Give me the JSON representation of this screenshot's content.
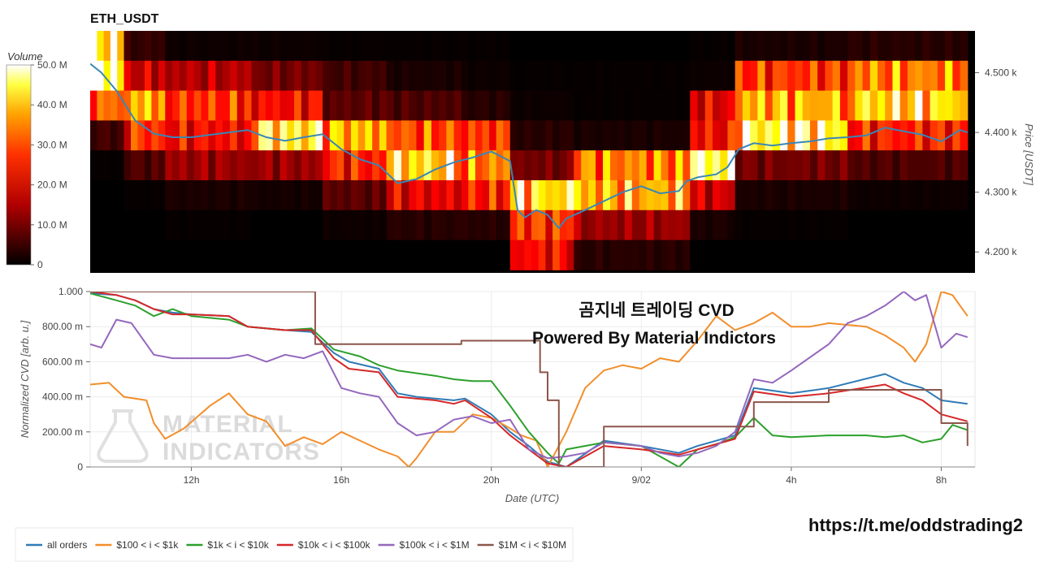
{
  "pair_title": "ETH_USDT",
  "colorbar": {
    "title": "Volume",
    "ticks": [
      {
        "label": "50.0 M",
        "value": 50
      },
      {
        "label": "40.0 M",
        "value": 40
      },
      {
        "label": "30.0 M",
        "value": 30
      },
      {
        "label": "20.0 M",
        "value": 20
      },
      {
        "label": "10.0 M",
        "value": 10
      },
      {
        "label": "0",
        "value": 0
      }
    ]
  },
  "overlay": {
    "line1": "곰지네 트레이딩 CVD",
    "line2": "Powered By Material Indictors"
  },
  "url": "https://t.me/oddstrading2",
  "watermark": {
    "line1": "MATERIAL",
    "line2": "INDICATORS"
  },
  "chart_data": [
    {
      "type": "heatmap",
      "title": "ETH_USDT",
      "ylabel": "Price [USDT]",
      "y_ticks": [
        {
          "label": "4.500 k",
          "value": 4500
        },
        {
          "label": "4.400 k",
          "value": 4400
        },
        {
          "label": "4.300 k",
          "value": 4300
        },
        {
          "label": "4.200 k",
          "value": 4200
        }
      ],
      "ylim": [
        4165,
        4570
      ],
      "colorbar": {
        "title": "Volume",
        "range": [
          0,
          50
        ],
        "unit": "M",
        "colorscale": "hot"
      },
      "price_bands": [
        [
          4520,
          4570
        ],
        [
          4470,
          4520
        ],
        [
          4420,
          4470
        ],
        [
          4370,
          4420
        ],
        [
          4320,
          4370
        ],
        [
          4270,
          4320
        ],
        [
          4220,
          4270
        ],
        [
          4170,
          4220
        ]
      ],
      "time_segments": [
        {
          "from": 9.3,
          "to": 10.2,
          "volumes": [
            42,
            50,
            28,
            5,
            0.5,
            0,
            0,
            0
          ]
        },
        {
          "from": 10.2,
          "to": 11.3,
          "volumes": [
            4,
            16,
            34,
            24,
            6,
            0.5,
            0,
            0
          ]
        },
        {
          "from": 11.3,
          "to": 13.6,
          "volumes": [
            1,
            14,
            24,
            20,
            12,
            2,
            0.5,
            0
          ]
        },
        {
          "from": 13.6,
          "to": 15.5,
          "volumes": [
            1,
            9,
            20,
            40,
            12,
            1.5,
            0,
            0
          ]
        },
        {
          "from": 15.5,
          "to": 17.2,
          "volumes": [
            0.5,
            5,
            7,
            34,
            22,
            7,
            1,
            0
          ]
        },
        {
          "from": 17.2,
          "to": 19.2,
          "volumes": [
            0.5,
            2,
            6,
            26,
            38,
            18,
            3,
            0
          ]
        },
        {
          "from": 19.2,
          "to": 20.5,
          "volumes": [
            0.5,
            1,
            3,
            24,
            30,
            22,
            3,
            0
          ]
        },
        {
          "from": 20.5,
          "to": 22.2,
          "volumes": [
            0,
            0.5,
            1,
            3,
            9,
            38,
            24,
            20
          ]
        },
        {
          "from": 22.2,
          "to": 25.3,
          "volumes": [
            0,
            0.5,
            0.5,
            2,
            30,
            34,
            12,
            3
          ]
        },
        {
          "from": 25.3,
          "to": 26.5,
          "volumes": [
            0.5,
            1,
            18,
            20,
            44,
            16,
            2,
            0
          ]
        },
        {
          "from": 26.5,
          "to": 29.5,
          "volumes": [
            2,
            24,
            34,
            42,
            9,
            2,
            0.5,
            0
          ]
        },
        {
          "from": 29.5,
          "to": 32.7,
          "volumes": [
            3,
            30,
            38,
            22,
            6,
            1,
            0,
            0
          ]
        }
      ],
      "price_line": {
        "x": [
          9.3,
          9.6,
          10.0,
          10.5,
          11.0,
          11.5,
          12.0,
          12.5,
          13.0,
          13.5,
          14.0,
          14.5,
          15.0,
          15.5,
          16.0,
          16.5,
          17.0,
          17.5,
          18.0,
          18.5,
          19.0,
          19.5,
          20.0,
          20.5,
          20.7,
          20.9,
          21.2,
          21.5,
          21.8,
          22.0,
          22.5,
          23.0,
          23.5,
          24.0,
          24.5,
          25.0,
          25.2,
          25.5,
          26.0,
          26.3,
          26.6,
          27.0,
          27.5,
          28.0,
          28.5,
          29.0,
          29.5,
          30.0,
          30.5,
          31.0,
          31.5,
          32.0,
          32.5,
          32.7
        ],
        "y": [
          4515,
          4500,
          4470,
          4420,
          4398,
          4392,
          4392,
          4396,
          4400,
          4404,
          4392,
          4386,
          4392,
          4397,
          4372,
          4355,
          4345,
          4315,
          4322,
          4338,
          4350,
          4358,
          4368,
          4352,
          4270,
          4258,
          4270,
          4262,
          4240,
          4256,
          4270,
          4285,
          4300,
          4310,
          4298,
          4302,
          4318,
          4325,
          4330,
          4342,
          4372,
          4382,
          4378,
          4382,
          4385,
          4390,
          4392,
          4395,
          4408,
          4402,
          4396,
          4385,
          4404,
          4400
        ]
      }
    },
    {
      "type": "line",
      "x_ticks": [
        {
          "label": "12h",
          "value": 12
        },
        {
          "label": "16h",
          "value": 16
        },
        {
          "label": "20h",
          "value": 20
        },
        {
          "label": "9/02",
          "value": 24
        },
        {
          "label": "4h",
          "value": 28
        },
        {
          "label": "8h",
          "value": 32
        }
      ],
      "xlim": [
        9.3,
        32.9
      ],
      "xlabel": "Date (UTC)",
      "ylabel": "Normalized CVD [arb. u.]",
      "ylim": [
        0,
        1
      ],
      "y_ticks": [
        {
          "label": "1.000",
          "value": 1.0
        },
        {
          "label": "800.00 m",
          "value": 0.8
        },
        {
          "label": "600.00 m",
          "value": 0.6
        },
        {
          "label": "400.00 m",
          "value": 0.4
        },
        {
          "label": "200.00 m",
          "value": 0.2
        },
        {
          "label": "0",
          "value": 0
        }
      ],
      "legend_position": "bottom",
      "series": [
        {
          "name": "all orders",
          "color": "#2f7bb6",
          "step": false,
          "x": [
            9.3,
            10.0,
            10.5,
            11.0,
            11.5,
            12.0,
            13.0,
            13.5,
            14.5,
            15.2,
            15.8,
            16.2,
            17.0,
            17.5,
            18.0,
            19.0,
            19.3,
            20.0,
            20.5,
            21.0,
            21.5,
            22.0,
            23.0,
            24.0,
            25.0,
            25.5,
            26.5,
            27.0,
            28.0,
            29.0,
            30.5,
            31.0,
            31.5,
            32.0,
            32.7
          ],
          "y": [
            0.99,
            0.98,
            0.95,
            0.9,
            0.88,
            0.87,
            0.86,
            0.8,
            0.78,
            0.77,
            0.65,
            0.6,
            0.56,
            0.42,
            0.4,
            0.38,
            0.39,
            0.3,
            0.2,
            0.12,
            0.03,
            0.0,
            0.15,
            0.12,
            0.08,
            0.12,
            0.18,
            0.45,
            0.42,
            0.45,
            0.53,
            0.48,
            0.45,
            0.38,
            0.36
          ]
        },
        {
          "name": "$100 < i < $1k",
          "color": "#f28e2b",
          "step": false,
          "x": [
            9.3,
            9.8,
            10.2,
            10.8,
            11.0,
            11.3,
            11.8,
            12.5,
            13.0,
            13.5,
            14.0,
            14.5,
            15.0,
            15.5,
            16.0,
            16.5,
            17.0,
            17.5,
            17.8,
            18.0,
            18.5,
            19.0,
            19.5,
            20.0,
            20.5,
            20.8,
            21.2,
            21.5,
            22.0,
            22.5,
            23.0,
            23.5,
            24.0,
            24.5,
            25.0,
            25.5,
            26.0,
            26.5,
            27.0,
            27.5,
            28.0,
            28.5,
            29.0,
            30.0,
            30.5,
            31.0,
            31.3,
            31.6,
            32.0,
            32.3,
            32.7
          ],
          "y": [
            0.47,
            0.48,
            0.4,
            0.38,
            0.25,
            0.16,
            0.22,
            0.35,
            0.42,
            0.3,
            0.26,
            0.12,
            0.17,
            0.13,
            0.2,
            0.15,
            0.1,
            0.06,
            0.0,
            0.05,
            0.2,
            0.2,
            0.3,
            0.28,
            0.22,
            0.18,
            0.15,
            0.0,
            0.2,
            0.45,
            0.55,
            0.58,
            0.56,
            0.62,
            0.6,
            0.72,
            0.86,
            0.78,
            0.82,
            0.88,
            0.8,
            0.8,
            0.82,
            0.8,
            0.75,
            0.68,
            0.6,
            0.7,
            1.0,
            0.98,
            0.86
          ]
        },
        {
          "name": "$1k < i < $10k",
          "color": "#2ca02c",
          "step": false,
          "x": [
            9.3,
            10.0,
            10.5,
            11.0,
            11.5,
            12.0,
            13.0,
            13.5,
            14.5,
            15.2,
            15.8,
            16.5,
            17.0,
            17.5,
            18.5,
            19.0,
            19.5,
            20.0,
            20.5,
            21.0,
            21.5,
            21.8,
            22.0,
            22.5,
            23.0,
            24.0,
            24.5,
            25.0,
            25.5,
            26.0,
            26.5,
            27.0,
            27.5,
            28.0,
            29.0,
            30.0,
            30.5,
            31.0,
            31.5,
            32.0,
            32.3,
            32.7
          ],
          "y": [
            0.99,
            0.95,
            0.92,
            0.86,
            0.9,
            0.86,
            0.84,
            0.8,
            0.78,
            0.79,
            0.67,
            0.63,
            0.58,
            0.55,
            0.52,
            0.5,
            0.49,
            0.49,
            0.35,
            0.2,
            0.08,
            0.02,
            0.1,
            0.12,
            0.14,
            0.12,
            0.06,
            0.0,
            0.1,
            0.13,
            0.17,
            0.28,
            0.18,
            0.17,
            0.18,
            0.18,
            0.17,
            0.18,
            0.14,
            0.16,
            0.24,
            0.21
          ]
        },
        {
          "name": "$10k < i < $100k",
          "color": "#d62728",
          "step": false,
          "x": [
            9.3,
            10.0,
            10.5,
            11.0,
            11.5,
            12.0,
            13.0,
            13.5,
            14.5,
            15.2,
            15.8,
            16.2,
            17.0,
            17.5,
            18.5,
            19.0,
            19.3,
            20.0,
            20.5,
            21.0,
            21.5,
            22.0,
            23.0,
            24.0,
            25.0,
            25.5,
            26.5,
            27.0,
            28.0,
            29.0,
            30.5,
            31.0,
            31.5,
            32.0,
            32.7
          ],
          "y": [
            1.0,
            0.98,
            0.95,
            0.9,
            0.87,
            0.87,
            0.86,
            0.8,
            0.78,
            0.78,
            0.62,
            0.56,
            0.54,
            0.4,
            0.38,
            0.36,
            0.38,
            0.28,
            0.18,
            0.1,
            0.02,
            0.0,
            0.12,
            0.1,
            0.07,
            0.1,
            0.16,
            0.43,
            0.4,
            0.42,
            0.47,
            0.42,
            0.38,
            0.3,
            0.26
          ]
        },
        {
          "name": "$100k < i < $1M",
          "color": "#9467bd",
          "step": false,
          "x": [
            9.3,
            9.6,
            10.0,
            10.4,
            10.8,
            11.0,
            11.5,
            12.0,
            13.0,
            13.5,
            14.0,
            14.5,
            15.0,
            15.5,
            16.0,
            16.5,
            17.0,
            17.5,
            18.0,
            18.5,
            19.0,
            19.5,
            20.0,
            20.5,
            21.0,
            21.5,
            22.0,
            22.5,
            23.0,
            24.0,
            24.5,
            25.0,
            25.5,
            26.0,
            26.5,
            27.0,
            27.5,
            28.0,
            29.0,
            29.5,
            30.0,
            30.5,
            31.0,
            31.3,
            31.6,
            32.0,
            32.4,
            32.7
          ],
          "y": [
            0.7,
            0.68,
            0.84,
            0.82,
            0.7,
            0.64,
            0.62,
            0.62,
            0.62,
            0.64,
            0.6,
            0.64,
            0.62,
            0.66,
            0.45,
            0.42,
            0.4,
            0.25,
            0.18,
            0.2,
            0.27,
            0.29,
            0.25,
            0.27,
            0.1,
            0.05,
            0.06,
            0.08,
            0.14,
            0.12,
            0.08,
            0.06,
            0.08,
            0.12,
            0.2,
            0.5,
            0.48,
            0.55,
            0.7,
            0.82,
            0.86,
            0.92,
            1.0,
            0.95,
            0.98,
            0.68,
            0.76,
            0.74
          ]
        },
        {
          "name": "$1M < i < $10M",
          "color": "#8c564b",
          "step": true,
          "x": [
            9.3,
            15.2,
            15.3,
            17.2,
            19.2,
            20.4,
            21.3,
            21.5,
            21.8,
            22.2,
            23.0,
            24.0,
            24.8,
            27.0,
            29.0,
            31.0,
            32.0,
            32.7
          ],
          "y": [
            1.0,
            1.0,
            0.7,
            0.7,
            0.72,
            0.72,
            0.54,
            0.38,
            0.0,
            0.0,
            0.23,
            0.23,
            0.23,
            0.37,
            0.44,
            0.44,
            0.25,
            0.12
          ]
        }
      ]
    }
  ]
}
